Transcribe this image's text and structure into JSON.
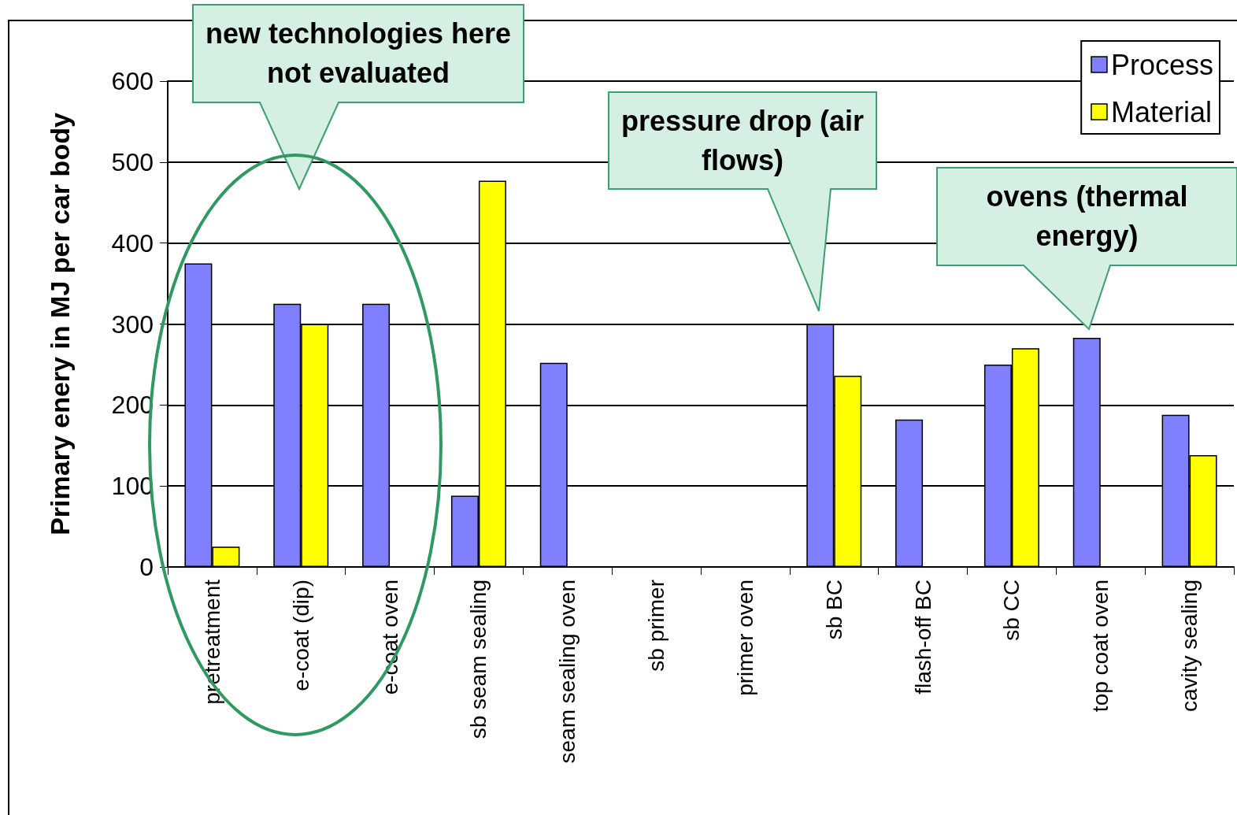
{
  "chart_data": {
    "type": "bar",
    "ylabel": "Primary enery in MJ per car body",
    "categories": [
      "pretreatment",
      "e-coat (dip)",
      "e-coat oven",
      "sb seam sealing",
      "seam sealing oven",
      "sb primer",
      "primer oven",
      "sb BC",
      "flash-off BC",
      "sb CC",
      "top coat oven",
      "cavity sealing"
    ],
    "series": [
      {
        "name": "Process",
        "color": "#8080ff",
        "values": [
          375,
          325,
          325,
          88,
          252,
          null,
          null,
          300,
          182,
          250,
          283,
          188
        ]
      },
      {
        "name": "Material",
        "color": "#ffff00",
        "values": [
          25,
          300,
          null,
          477,
          null,
          null,
          null,
          236,
          null,
          270,
          null,
          138
        ]
      }
    ],
    "ylim": [
      0,
      600
    ],
    "yticks": [
      0,
      100,
      200,
      300,
      400,
      500,
      600
    ],
    "grid": "y",
    "legend": "top right",
    "annotations": [
      "new technologies here not evaluated",
      "pressure drop (air flows)",
      "ovens (thermal energy)"
    ]
  }
}
